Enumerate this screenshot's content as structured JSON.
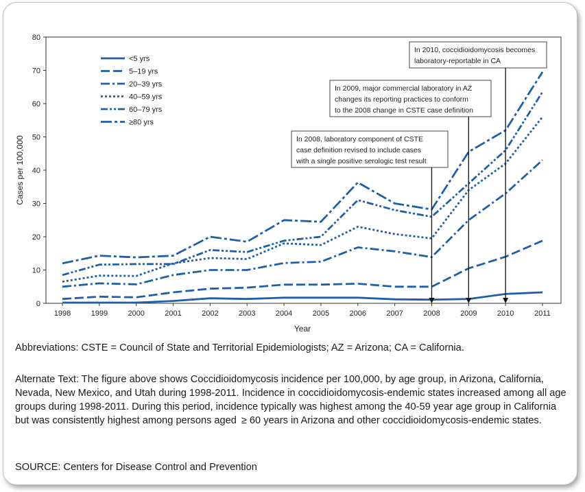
{
  "chart_data": {
    "type": "line",
    "title": "",
    "xlabel": "Year",
    "ylabel": "Cases per 100,000",
    "ylim": [
      0,
      80
    ],
    "yticks": [
      0,
      10,
      20,
      30,
      40,
      50,
      60,
      70,
      80
    ],
    "x": [
      1998,
      1999,
      2000,
      2001,
      2002,
      2003,
      2004,
      2005,
      2006,
      2007,
      2008,
      2009,
      2010,
      2011
    ],
    "series": [
      {
        "name": "<5 yrs",
        "dash": "solid",
        "values": [
          0.2,
          0.2,
          0.2,
          0.7,
          1.5,
          1.3,
          1.7,
          1.7,
          1.7,
          1.2,
          1.1,
          1.3,
          2.8,
          3.3
        ]
      },
      {
        "name": "5–19 yrs",
        "dash": "dash",
        "values": [
          1.3,
          2.0,
          1.8,
          3.3,
          4.4,
          4.7,
          5.6,
          5.6,
          5.9,
          5.0,
          5.0,
          10.5,
          14.0,
          18.8
        ]
      },
      {
        "name": "20–39 yrs",
        "dash": "dashdot",
        "values": [
          5.0,
          6.0,
          5.7,
          8.5,
          10.0,
          10.0,
          12.1,
          12.5,
          16.8,
          15.6,
          13.9,
          25.0,
          33.0,
          43.0
        ]
      },
      {
        "name": "40–59 yrs",
        "dash": "dot",
        "values": [
          6.5,
          8.3,
          8.2,
          12.0,
          13.6,
          13.3,
          18.0,
          17.5,
          23.0,
          20.8,
          19.5,
          34.0,
          42.0,
          56.0
        ]
      },
      {
        "name": "60–79 yrs",
        "dash": "dashdotdot",
        "values": [
          8.5,
          11.6,
          11.8,
          11.8,
          16.0,
          15.4,
          18.8,
          20.0,
          31.0,
          28.0,
          26.0,
          36.0,
          46.0,
          63.5
        ]
      },
      {
        "name": "≥80 yrs",
        "dash": "longdashdot",
        "values": [
          12.0,
          14.3,
          13.8,
          14.3,
          20.0,
          18.5,
          25.0,
          24.5,
          36.3,
          30.0,
          28.2,
          45.5,
          52.0,
          69.5
        ]
      }
    ],
    "annotations": [
      {
        "year": 2008,
        "lines": [
          "In 2008, laboratory component of CSTE",
          "case definition revised to include cases",
          "with a single positive serologic test result"
        ]
      },
      {
        "year": 2009,
        "lines": [
          "In 2009, major commercial laboratory in AZ",
          "changes its reporting practices to conform",
          "to the 2008 change in CSTE case definition"
        ]
      },
      {
        "year": 2010,
        "lines": [
          "In 2010, coccidioidomycosis becomes",
          "laboratory-reportable in CA"
        ]
      }
    ],
    "colors": {
      "line": "#1f5fa8",
      "axis": "#333333",
      "text": "#222222"
    }
  },
  "abbreviations": "Abbreviations: CSTE = Council of State and Territorial Epidemiologists; AZ = Arizona; CA = California.",
  "alt_text": "Alternate Text: The figure above shows Coccidioidomycosis incidence per 100,000, by age group, in Arizona, California, Nevada, New Mexico, and Utah during 1998-2011. Incidence in coccidioidomycosis-endemic states increased among all age groups during 1998-2011. During this period, incidence typically was highest among the 40-59 year age group in California but was consistently highest among persons aged  ≥ 60 years in Arizona and other coccidioidomycosis-endemic states.",
  "source": "SOURCE: Centers for Disease Control and Prevention"
}
